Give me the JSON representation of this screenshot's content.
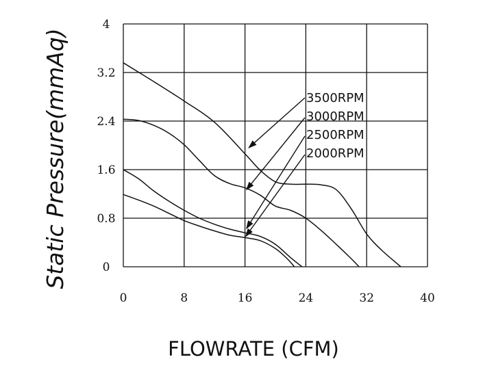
{
  "chart_data": {
    "type": "line",
    "title": "",
    "xlabel": "FLOWRATE (CFM)",
    "ylabel": "Static Pressure(mmAq)",
    "xlim": [
      0,
      40
    ],
    "ylim": [
      0,
      4
    ],
    "x_ticks": [
      "0",
      "8",
      "16",
      "24",
      "32",
      "40"
    ],
    "y_ticks": [
      "0",
      "0.8",
      "1.6",
      "2.4",
      "3.2",
      "4"
    ],
    "x_tick_values": [
      0,
      8,
      16,
      24,
      32,
      40
    ],
    "y_tick_values": [
      0,
      0.8,
      1.6,
      2.4,
      3.2,
      4
    ],
    "grid": true,
    "legend": "callout-labels-center-right",
    "series": [
      {
        "name": "3500RPM",
        "x": [
          0,
          4,
          8,
          12,
          16,
          18,
          20,
          22,
          24,
          26,
          28,
          30,
          32,
          34,
          36.5
        ],
        "y": [
          3.36,
          3.05,
          2.73,
          2.38,
          1.86,
          1.59,
          1.4,
          1.36,
          1.36,
          1.35,
          1.27,
          0.95,
          0.54,
          0.27,
          0
        ]
      },
      {
        "name": "3000RPM",
        "x": [
          0,
          2,
          4,
          6,
          8,
          10,
          12,
          14,
          16,
          18,
          20,
          22,
          24,
          26,
          28,
          30,
          31
        ],
        "y": [
          2.43,
          2.41,
          2.33,
          2.2,
          2.01,
          1.75,
          1.5,
          1.37,
          1.3,
          1.18,
          1.0,
          0.93,
          0.8,
          0.6,
          0.37,
          0.13,
          0
        ]
      },
      {
        "name": "2500RPM",
        "x": [
          0,
          2,
          4,
          6,
          8,
          10,
          12,
          14,
          16,
          18,
          20,
          22,
          23.5
        ],
        "y": [
          1.6,
          1.45,
          1.25,
          1.08,
          0.93,
          0.8,
          0.7,
          0.62,
          0.56,
          0.5,
          0.37,
          0.15,
          0
        ]
      },
      {
        "name": "2000RPM",
        "x": [
          0,
          2,
          4,
          6,
          8,
          10,
          12,
          14,
          16,
          18,
          20,
          21.5,
          22.5
        ],
        "y": [
          1.19,
          1.1,
          1.0,
          0.88,
          0.76,
          0.67,
          0.59,
          0.52,
          0.48,
          0.43,
          0.3,
          0.14,
          0
        ]
      }
    ],
    "callout_targets": [
      {
        "series": "3500RPM",
        "x": 16.5,
        "y": 1.96
      },
      {
        "series": "3000RPM",
        "x": 16.2,
        "y": 1.27
      },
      {
        "series": "2500RPM",
        "x": 16.2,
        "y": 0.63
      },
      {
        "series": "2000RPM",
        "x": 16.1,
        "y": 0.5
      }
    ]
  }
}
